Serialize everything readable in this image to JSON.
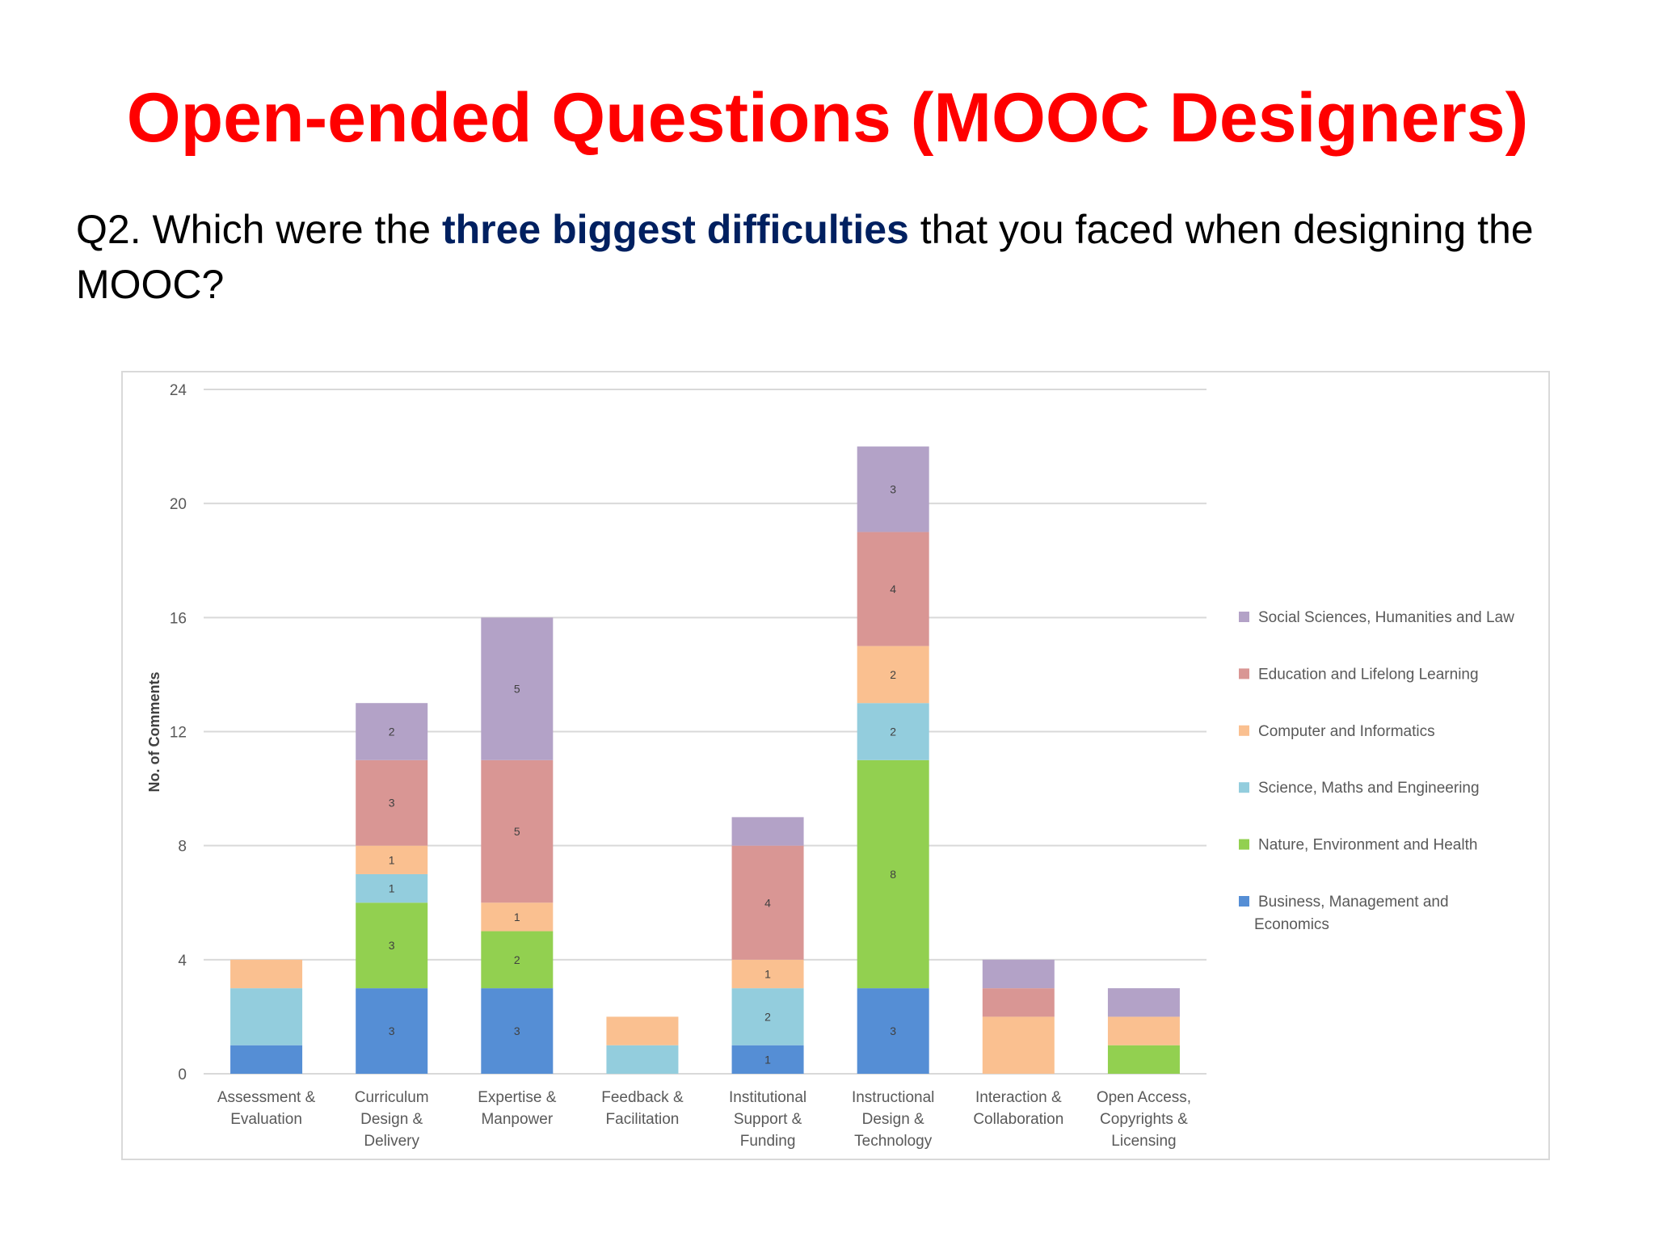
{
  "slide": {
    "title": "Open-ended Questions (MOOC Designers)",
    "question_prefix": "Q2. Which were the ",
    "question_emphasis": "three biggest difficulties",
    "question_suffix": " that you faced when designing the MOOC?"
  },
  "chart_data": {
    "type": "bar",
    "stacked": true,
    "title": "",
    "xlabel": "",
    "ylabel": "No. of Comments",
    "ylim": [
      0,
      24
    ],
    "yticks": [
      0,
      4,
      8,
      12,
      16,
      20,
      24
    ],
    "grid": true,
    "legend_position": "right",
    "categories": [
      [
        "Assessment &",
        "Evaluation"
      ],
      [
        "Curriculum",
        "Design &",
        "Delivery"
      ],
      [
        "Expertise &",
        "Manpower"
      ],
      [
        "Feedback &",
        "Facilitation"
      ],
      [
        "Institutional",
        "Support &",
        "Funding"
      ],
      [
        "Instructional",
        "Design &",
        "Technology"
      ],
      [
        "Interaction &",
        "Collaboration"
      ],
      [
        "Open Access,",
        "Copyrights &",
        "Licensing"
      ]
    ],
    "series": [
      {
        "name": [
          "Business, Management and",
          "Economics"
        ],
        "color": "#558ed5",
        "values": [
          1,
          3,
          3,
          0,
          1,
          3,
          0,
          0
        ],
        "labels": [
          null,
          3,
          3,
          null,
          1,
          3,
          null,
          null
        ]
      },
      {
        "name": [
          "Nature, Environment and Health"
        ],
        "color": "#92d050",
        "values": [
          0,
          3,
          2,
          0,
          0,
          8,
          0,
          1
        ],
        "labels": [
          null,
          3,
          2,
          null,
          null,
          8,
          null,
          null
        ]
      },
      {
        "name": [
          "Science, Maths and Engineering"
        ],
        "color": "#93cddd",
        "values": [
          2,
          1,
          0,
          1,
          2,
          2,
          0,
          0
        ],
        "labels": [
          null,
          1,
          null,
          null,
          2,
          2,
          null,
          null
        ]
      },
      {
        "name": [
          "Computer and Informatics"
        ],
        "color": "#fac090",
        "values": [
          1,
          1,
          1,
          1,
          1,
          2,
          2,
          1
        ],
        "labels": [
          null,
          1,
          1,
          null,
          1,
          2,
          null,
          null
        ]
      },
      {
        "name": [
          "Education and Lifelong Learning"
        ],
        "color": "#d99694",
        "values": [
          0,
          3,
          5,
          0,
          4,
          4,
          1,
          0
        ],
        "labels": [
          null,
          3,
          5,
          null,
          4,
          4,
          null,
          null
        ]
      },
      {
        "name": [
          "Social Sciences, Humanities and Law"
        ],
        "color": "#b3a2c7",
        "values": [
          0,
          2,
          5,
          0,
          1,
          3,
          1,
          1
        ],
        "labels": [
          null,
          2,
          5,
          null,
          null,
          3,
          null,
          null
        ]
      }
    ]
  }
}
